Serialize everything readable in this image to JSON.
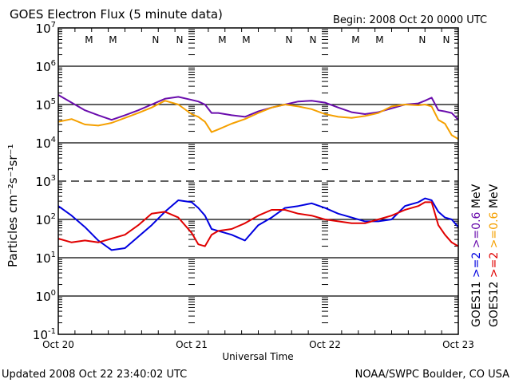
{
  "chart_data": {
    "type": "line",
    "title": "GOES Electron Flux (5 minute data)",
    "subtitle": "Begin: 2008 Oct 20 0000 UTC",
    "xlabel": "Universal Time",
    "ylabel": "Particles cm⁻²s⁻¹sr⁻¹",
    "yscale": "log",
    "ylim": [
      0.1,
      10000000
    ],
    "xlim_days": [
      0,
      3
    ],
    "grid": true,
    "x_tick_labels": [
      "Oct 20",
      "Oct 21",
      "Oct 22",
      "Oct 23"
    ],
    "y_tick_exponents": [
      7,
      6,
      5,
      4,
      3,
      2,
      1,
      0,
      -1
    ],
    "dashed_gridline_exponent": 3,
    "solid_gridline_exponents": [
      6,
      5,
      4,
      2,
      1,
      0
    ],
    "local_time_markers": [
      {
        "label": "M",
        "day": 0.23,
        "satellite": "GOES12",
        "color": "#e00000"
      },
      {
        "label": "M",
        "day": 0.41,
        "satellite": "GOES11",
        "color": "#0000e0"
      },
      {
        "label": "N",
        "day": 0.73,
        "satellite": "GOES12",
        "color": "#e00000"
      },
      {
        "label": "N",
        "day": 0.91,
        "satellite": "GOES11",
        "color": "#0000e0"
      },
      {
        "label": "M",
        "day": 1.23,
        "satellite": "GOES12",
        "color": "#e00000"
      },
      {
        "label": "M",
        "day": 1.41,
        "satellite": "GOES11",
        "color": "#0000e0"
      },
      {
        "label": "N",
        "day": 1.73,
        "satellite": "GOES12",
        "color": "#e00000"
      },
      {
        "label": "N",
        "day": 1.91,
        "satellite": "GOES11",
        "color": "#0000e0"
      },
      {
        "label": "M",
        "day": 2.23,
        "satellite": "GOES12",
        "color": "#e00000"
      },
      {
        "label": "M",
        "day": 2.41,
        "satellite": "GOES11",
        "color": "#0000e0"
      },
      {
        "label": "N",
        "day": 2.73,
        "satellite": "GOES12",
        "color": "#e00000"
      },
      {
        "label": "N",
        "day": 2.91,
        "satellite": "GOES11",
        "color": "#0000e0"
      }
    ],
    "x": [
      0,
      0.1,
      0.2,
      0.3,
      0.4,
      0.5,
      0.6,
      0.7,
      0.8,
      0.9,
      1.0,
      1.05,
      1.1,
      1.15,
      1.2,
      1.3,
      1.4,
      1.5,
      1.6,
      1.7,
      1.8,
      1.9,
      2.0,
      2.1,
      2.2,
      2.3,
      2.4,
      2.5,
      2.6,
      2.7,
      2.75,
      2.8,
      2.85,
      2.9,
      2.95,
      3.0
    ],
    "series": [
      {
        "name": "GOES11 >=0.6 MeV",
        "satellite": "GOES11",
        "energy": ">=0.6 MeV",
        "color": "#6a0dad",
        "log10_values": [
          5.25,
          5.05,
          4.85,
          4.72,
          4.6,
          4.72,
          4.85,
          5.0,
          5.15,
          5.2,
          5.12,
          5.08,
          5.0,
          4.78,
          4.78,
          4.72,
          4.68,
          4.82,
          4.92,
          5.0,
          5.08,
          5.1,
          5.05,
          4.92,
          4.8,
          4.75,
          4.8,
          4.9,
          5.0,
          5.03,
          5.1,
          5.18,
          4.85,
          4.82,
          4.78,
          4.6
        ]
      },
      {
        "name": "GOES12 >=0.6 MeV",
        "satellite": "GOES12",
        "energy": ">=0.6 MeV",
        "color": "#f5a000",
        "log10_values": [
          4.55,
          4.62,
          4.48,
          4.45,
          4.52,
          4.65,
          4.78,
          4.92,
          5.1,
          5.0,
          4.75,
          4.68,
          4.55,
          4.28,
          4.35,
          4.5,
          4.62,
          4.78,
          4.92,
          5.0,
          4.95,
          4.88,
          4.75,
          4.68,
          4.65,
          4.7,
          4.78,
          4.95,
          5.0,
          4.98,
          5.0,
          4.95,
          4.6,
          4.5,
          4.2,
          4.1
        ]
      },
      {
        "name": "GOES11 >=2 MeV",
        "satellite": "GOES11",
        "energy": ">=2 MeV",
        "color": "#0000e0",
        "log10_values": [
          2.35,
          2.1,
          1.8,
          1.45,
          1.2,
          1.25,
          1.55,
          1.85,
          2.2,
          2.5,
          2.45,
          2.3,
          2.1,
          1.75,
          1.7,
          1.6,
          1.45,
          1.85,
          2.05,
          2.3,
          2.35,
          2.42,
          2.3,
          2.15,
          2.05,
          1.95,
          1.95,
          2.0,
          2.35,
          2.45,
          2.55,
          2.5,
          2.2,
          2.05,
          2.0,
          1.8
        ]
      },
      {
        "name": "GOES12 >=2 MeV",
        "satellite": "GOES12",
        "energy": ">=2 MeV",
        "color": "#e00000",
        "log10_values": [
          1.5,
          1.4,
          1.45,
          1.4,
          1.5,
          1.6,
          1.85,
          2.15,
          2.2,
          2.05,
          1.65,
          1.35,
          1.3,
          1.6,
          1.7,
          1.75,
          1.9,
          2.1,
          2.25,
          2.25,
          2.15,
          2.1,
          2.0,
          1.95,
          1.9,
          1.9,
          2.0,
          2.1,
          2.25,
          2.35,
          2.45,
          2.45,
          1.85,
          1.6,
          1.4,
          1.3
        ]
      }
    ],
    "legend": [
      {
        "text": "GOES11",
        "color": "#000000"
      },
      {
        "text": ">=2",
        "color": "#0000e0"
      },
      {
        "text": ">=0.6",
        "color": "#6a0dad"
      },
      {
        "text": "MeV",
        "color": "#000000"
      },
      {
        "text": "GOES12",
        "color": "#000000"
      },
      {
        "text": ">=2",
        "color": "#e00000"
      },
      {
        "text": ">=0.6",
        "color": "#f5a000"
      },
      {
        "text": "MeV",
        "color": "#000000"
      }
    ],
    "legend_placement": "right-vertical"
  },
  "footer": {
    "updated": "Updated 2008 Oct 22 23:40:02 UTC",
    "credit": "NOAA/SWPC Boulder, CO USA"
  }
}
